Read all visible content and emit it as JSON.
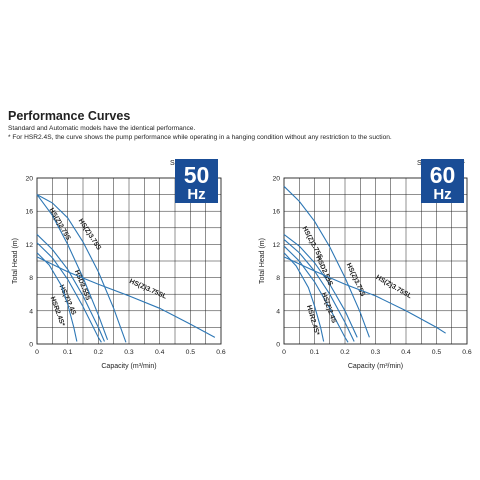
{
  "header": {
    "title": "Performance Curves",
    "notes": [
      "Standard and Automatic models have the identical performance.",
      "* For HSR2.4S, the curve shows the pump performance while operating in a hanging condition without any restriction to the suction."
    ]
  },
  "chart_data": [
    {
      "type": "line",
      "speed_label": "S.S. 3000min⁻¹",
      "badge_value": "50",
      "badge_unit": "Hz",
      "xlabel": "Capacity (m³/min)",
      "ylabel": "Total Head (m)",
      "xlim": [
        0,
        0.6
      ],
      "ylim": [
        0,
        20
      ],
      "xticks": [
        "0",
        "0.1",
        "0.2",
        "0.3",
        "0.4",
        "0.5",
        "0.6"
      ],
      "yticks": [
        "0",
        "4",
        "8",
        "12",
        "16",
        "20"
      ],
      "grid": true,
      "series": [
        {
          "name": "HS(Z)3.75S",
          "points": [
            [
              0,
              18.0
            ],
            [
              0.05,
              17.0
            ],
            [
              0.1,
              15.2
            ],
            [
              0.15,
              12.3
            ],
            [
              0.2,
              8.7
            ],
            [
              0.25,
              4.3
            ],
            [
              0.29,
              0.2
            ]
          ],
          "label_pos": [
            0.135,
            14.9
          ],
          "label_angle": 57
        },
        {
          "name": "HS(Z)2.75S",
          "points": [
            [
              0,
              18.0
            ],
            [
              0.05,
              15.5
            ],
            [
              0.1,
              12.0
            ],
            [
              0.15,
              8.0
            ],
            [
              0.2,
              3.5
            ],
            [
              0.23,
              0.5
            ]
          ],
          "label_pos": [
            0.04,
            16.2
          ],
          "label_angle": 60
        },
        {
          "name": "HSD2.55S",
          "points": [
            [
              0,
              13.2
            ],
            [
              0.05,
              11.4
            ],
            [
              0.1,
              9.0
            ],
            [
              0.15,
              5.8
            ],
            [
              0.2,
              2.0
            ],
            [
              0.22,
              0.3
            ]
          ],
          "label_pos": [
            0.123,
            8.8
          ],
          "label_angle": 68
        },
        {
          "name": "HS(Z)2.4S",
          "points": [
            [
              0,
              12.2
            ],
            [
              0.05,
              10.4
            ],
            [
              0.1,
              7.8
            ],
            [
              0.15,
              4.5
            ],
            [
              0.2,
              0.8
            ],
            [
              0.21,
              0.2
            ]
          ],
          "label_pos": [
            0.073,
            7.0
          ],
          "label_angle": 66
        },
        {
          "name": "HSR2.4S*",
          "points": [
            [
              0,
              11.0
            ],
            [
              0.04,
              9.5
            ],
            [
              0.08,
              7.0
            ],
            [
              0.1,
              4.8
            ],
            [
              0.12,
              2.0
            ],
            [
              0.13,
              0.3
            ]
          ],
          "label_pos": [
            0.044,
            5.6
          ],
          "label_angle": 70
        },
        {
          "name": "HS(Z)3.75SL",
          "points": [
            [
              0,
              10.5
            ],
            [
              0.1,
              8.7
            ],
            [
              0.2,
              7.2
            ],
            [
              0.3,
              5.8
            ],
            [
              0.4,
              4.3
            ],
            [
              0.5,
              2.4
            ],
            [
              0.58,
              0.8
            ]
          ],
          "label_pos": [
            0.3,
            7.4
          ],
          "label_angle": 24
        }
      ]
    },
    {
      "type": "line",
      "speed_label": "S.S. 3600min⁻¹",
      "badge_value": "60",
      "badge_unit": "Hz",
      "xlabel": "Capacity (m³/min)",
      "ylabel": "Total Head (m)",
      "xlim": [
        0,
        0.6
      ],
      "ylim": [
        0,
        20
      ],
      "xticks": [
        "0",
        "0.1",
        "0.2",
        "0.3",
        "0.4",
        "0.5",
        "0.6"
      ],
      "yticks": [
        "0",
        "4",
        "8",
        "12",
        "16",
        "20"
      ],
      "grid": true,
      "series": [
        {
          "name": "HS(Z)3.75S",
          "points": [
            [
              0,
              19.0
            ],
            [
              0.05,
              17.2
            ],
            [
              0.1,
              14.8
            ],
            [
              0.15,
              11.7
            ],
            [
              0.2,
              8.0
            ],
            [
              0.25,
              3.8
            ],
            [
              0.28,
              0.8
            ]
          ],
          "label_pos": [
            0.205,
            9.6
          ],
          "label_angle": 65
        },
        {
          "name": "HS(Z)2.75S",
          "points": [
            [
              0,
              13.2
            ],
            [
              0.05,
              11.8
            ],
            [
              0.1,
              9.8
            ],
            [
              0.15,
              7.2
            ],
            [
              0.2,
              4.0
            ],
            [
              0.24,
              0.8
            ]
          ],
          "label_pos": [
            0.06,
            14.0
          ],
          "label_angle": 62
        },
        {
          "name": "HSD2.55S",
          "points": [
            [
              0,
              12.6
            ],
            [
              0.05,
              11.0
            ],
            [
              0.1,
              8.8
            ],
            [
              0.15,
              6.0
            ],
            [
              0.2,
              2.6
            ],
            [
              0.23,
              0.3
            ]
          ],
          "label_pos": [
            0.105,
            10.5
          ],
          "label_angle": 66
        },
        {
          "name": "HS(Z)2.4S",
          "points": [
            [
              0,
              11.8
            ],
            [
              0.05,
              10.0
            ],
            [
              0.1,
              7.5
            ],
            [
              0.15,
              4.3
            ],
            [
              0.2,
              0.8
            ],
            [
              0.21,
              0.2
            ]
          ],
          "label_pos": [
            0.123,
            6.1
          ],
          "label_angle": 70
        },
        {
          "name": "HSR2.4S*",
          "points": [
            [
              0,
              11.0
            ],
            [
              0.04,
              9.4
            ],
            [
              0.08,
              6.8
            ],
            [
              0.1,
              4.6
            ],
            [
              0.12,
              2.0
            ],
            [
              0.13,
              0.3
            ]
          ],
          "label_pos": [
            0.075,
            4.6
          ],
          "label_angle": 74
        },
        {
          "name": "HS(Z)3.75SL",
          "points": [
            [
              0,
              10.5
            ],
            [
              0.1,
              8.8
            ],
            [
              0.2,
              7.2
            ],
            [
              0.3,
              5.8
            ],
            [
              0.4,
              4.0
            ],
            [
              0.5,
              2.0
            ],
            [
              0.53,
              1.3
            ]
          ],
          "label_pos": [
            0.3,
            7.9
          ],
          "label_angle": 30
        }
      ]
    }
  ]
}
